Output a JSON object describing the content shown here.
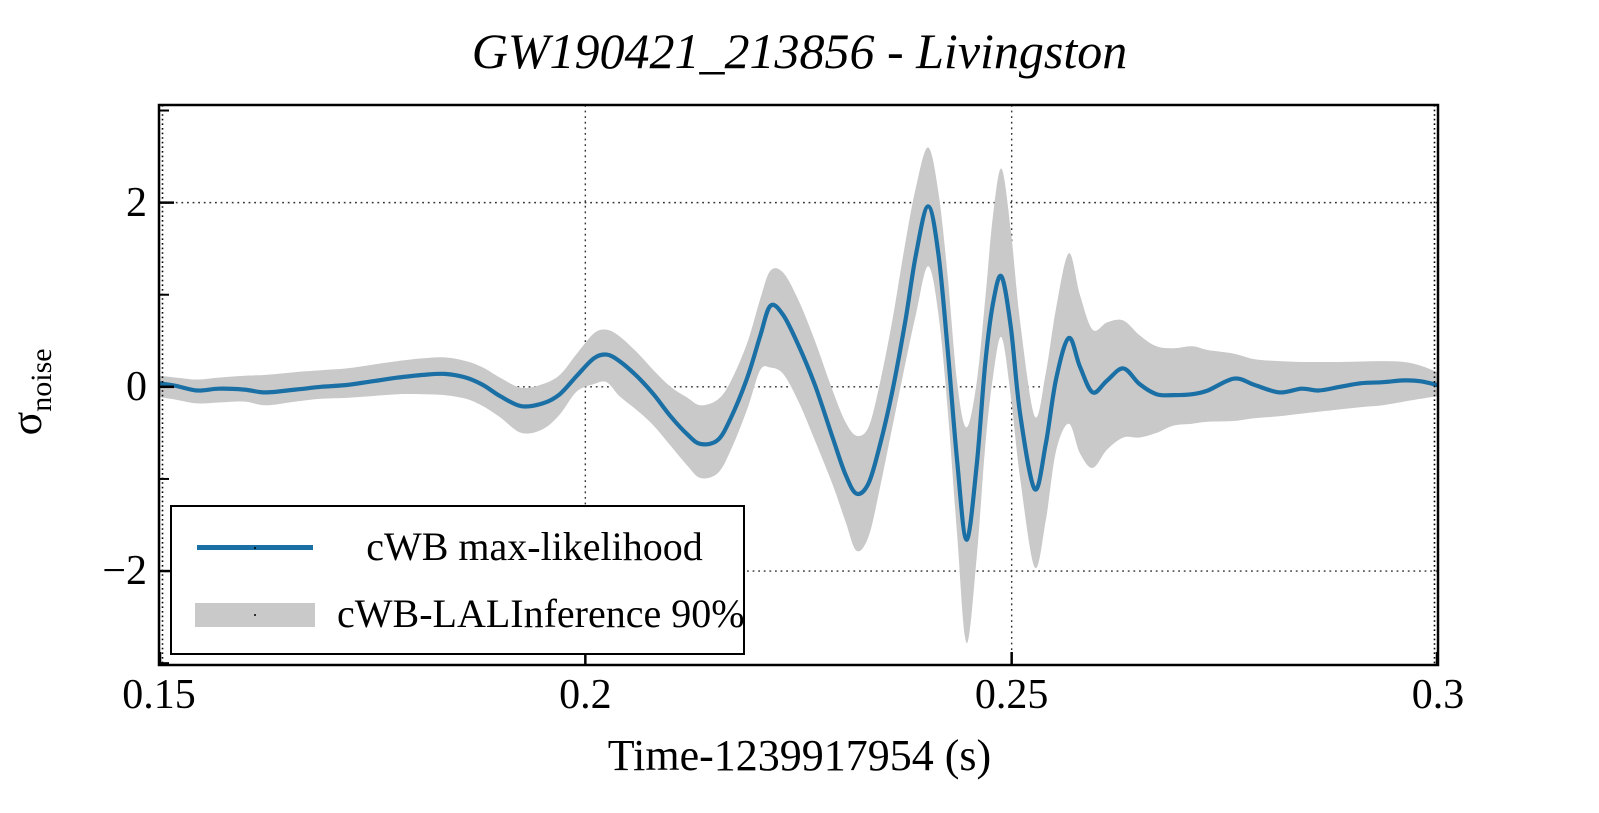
{
  "title": "GW190421_213856 - Livingston",
  "axes": {
    "xlabel": "Time-1239917954 (s)",
    "ylabel_symbol": "σ",
    "ylabel_subscript": "noise"
  },
  "legend": {
    "line_label": "cWB max-likelihood",
    "band_label": "cWB-LALInference 90%"
  },
  "colors": {
    "line": "#1a6fa5",
    "band": "#c9c9c9",
    "grid": "#333333",
    "frame": "#000000",
    "background": "#ffffff"
  },
  "chart_data": {
    "type": "line",
    "title": "GW190421_213856 - Livingston",
    "xlabel": "Time-1239917954 (s)",
    "ylabel": "σ_noise",
    "xlim": [
      0.15,
      0.3
    ],
    "ylim": [
      -3.02,
      3.06
    ],
    "xticks": [
      0.15,
      0.2,
      0.25,
      0.3
    ],
    "xtick_labels": [
      "0.15",
      "0.2",
      "0.25",
      "0.3"
    ],
    "yticks": [
      -2,
      0,
      2
    ],
    "ytick_labels": [
      "−2",
      "0",
      "2"
    ],
    "yticks_minor": [
      -3,
      -1,
      1,
      3
    ],
    "grid": "dotted lines at major ticks",
    "legend_position": "lower left",
    "x": [
      0.15,
      0.152,
      0.1545,
      0.157,
      0.16,
      0.1625,
      0.166,
      0.169,
      0.172,
      0.175,
      0.178,
      0.181,
      0.1835,
      0.186,
      0.188,
      0.19,
      0.1925,
      0.195,
      0.197,
      0.199,
      0.201,
      0.2025,
      0.204,
      0.206,
      0.208,
      0.21,
      0.212,
      0.2135,
      0.2155,
      0.217,
      0.219,
      0.2205,
      0.2217,
      0.2232,
      0.225,
      0.227,
      0.229,
      0.2305,
      0.2318,
      0.2332,
      0.2345,
      0.236,
      0.2375,
      0.2388,
      0.2402,
      0.2414,
      0.2425,
      0.2436,
      0.2447,
      0.2459,
      0.2469,
      0.2478,
      0.2488,
      0.2499,
      0.251,
      0.2527,
      0.254,
      0.2552,
      0.2567,
      0.258,
      0.2595,
      0.2612,
      0.2631,
      0.265,
      0.267,
      0.269,
      0.2712,
      0.273,
      0.2761,
      0.2785,
      0.2814,
      0.284,
      0.286,
      0.2885,
      0.291,
      0.2935,
      0.296,
      0.298,
      0.2999
    ],
    "series": [
      {
        "name": "cWB max-likelihood",
        "type": "line",
        "color": "#1a6fa5",
        "y": [
          0.04,
          0.01,
          -0.04,
          -0.02,
          -0.03,
          -0.06,
          -0.03,
          0.0,
          0.02,
          0.06,
          0.1,
          0.13,
          0.14,
          0.1,
          0.02,
          -0.1,
          -0.21,
          -0.18,
          -0.08,
          0.12,
          0.31,
          0.35,
          0.28,
          0.12,
          -0.08,
          -0.32,
          -0.52,
          -0.62,
          -0.58,
          -0.35,
          0.1,
          0.55,
          0.88,
          0.78,
          0.45,
          0.0,
          -0.55,
          -0.95,
          -1.16,
          -1.05,
          -0.65,
          -0.05,
          0.7,
          1.45,
          1.96,
          1.45,
          0.4,
          -0.8,
          -1.66,
          -0.85,
          0.25,
          0.9,
          1.2,
          0.65,
          -0.3,
          -1.11,
          -0.62,
          0.08,
          0.53,
          0.22,
          -0.06,
          0.07,
          0.2,
          0.03,
          -0.08,
          -0.09,
          -0.08,
          -0.04,
          0.09,
          0.02,
          -0.06,
          -0.02,
          -0.04,
          0.0,
          0.04,
          0.05,
          0.07,
          0.06,
          0.02
        ]
      },
      {
        "name": "cWB-LALInference 90%",
        "type": "band",
        "color": "#c9c9c9",
        "lo": [
          -0.11,
          -0.14,
          -0.18,
          -0.17,
          -0.16,
          -0.2,
          -0.16,
          -0.13,
          -0.12,
          -0.1,
          -0.08,
          -0.08,
          -0.09,
          -0.13,
          -0.21,
          -0.33,
          -0.5,
          -0.46,
          -0.3,
          -0.05,
          0.03,
          0.05,
          -0.1,
          -0.25,
          -0.42,
          -0.64,
          -0.86,
          -0.99,
          -0.94,
          -0.7,
          -0.24,
          0.18,
          0.21,
          0.14,
          -0.16,
          -0.6,
          -1.06,
          -1.46,
          -1.78,
          -1.63,
          -1.12,
          -0.44,
          0.24,
          0.8,
          1.31,
          0.8,
          -0.25,
          -1.6,
          -2.78,
          -1.85,
          -0.65,
          0.1,
          0.54,
          -0.1,
          -1.0,
          -1.96,
          -1.45,
          -0.7,
          -0.4,
          -0.72,
          -0.88,
          -0.68,
          -0.55,
          -0.55,
          -0.5,
          -0.42,
          -0.4,
          -0.38,
          -0.37,
          -0.34,
          -0.32,
          -0.29,
          -0.27,
          -0.245,
          -0.22,
          -0.2,
          -0.16,
          -0.13,
          -0.1
        ],
        "hi": [
          0.12,
          0.1,
          0.08,
          0.1,
          0.12,
          0.13,
          0.16,
          0.18,
          0.2,
          0.24,
          0.28,
          0.31,
          0.32,
          0.28,
          0.21,
          0.1,
          -0.01,
          0.03,
          0.13,
          0.36,
          0.58,
          0.62,
          0.55,
          0.38,
          0.18,
          0.0,
          -0.12,
          -0.2,
          -0.14,
          0.05,
          0.48,
          0.95,
          1.26,
          1.24,
          0.94,
          0.48,
          -0.04,
          -0.38,
          -0.53,
          -0.44,
          0.02,
          0.72,
          1.55,
          2.18,
          2.6,
          2.12,
          1.2,
          0.05,
          -0.44,
          0.05,
          0.95,
          1.85,
          2.37,
          1.7,
          0.7,
          -0.32,
          0.15,
          0.85,
          1.45,
          1.0,
          0.62,
          0.7,
          0.72,
          0.56,
          0.44,
          0.42,
          0.44,
          0.4,
          0.36,
          0.3,
          0.28,
          0.27,
          0.27,
          0.27,
          0.275,
          0.28,
          0.27,
          0.23,
          0.16
        ]
      }
    ]
  }
}
